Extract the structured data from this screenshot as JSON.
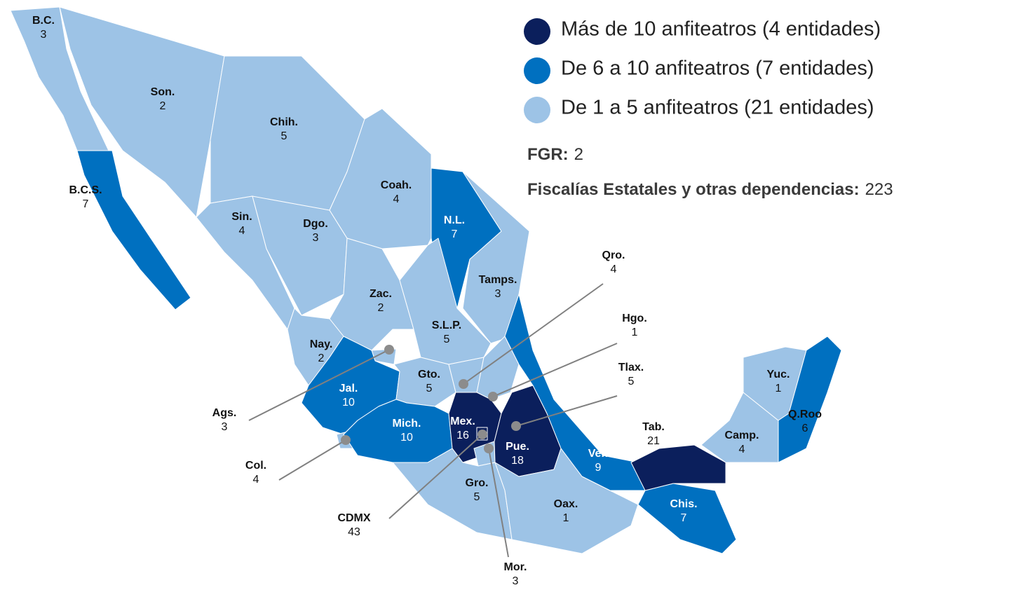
{
  "legend": [
    {
      "label": "Más de 10 anfiteatros (4 entidades)",
      "color": "#0b1f5c"
    },
    {
      "label": "De 6 a 10 anfiteatros (7 entidades)",
      "color": "#0070c0"
    },
    {
      "label": "De 1 a 5 anfiteatros (21 entidades)",
      "color": "#9dc3e6"
    }
  ],
  "summary": [
    {
      "label": "FGR:",
      "value": 2
    },
    {
      "label": "Fiscalías Estatales y otras dependencias:",
      "value": 223
    }
  ],
  "states": [
    {
      "name": "B.C.",
      "value": 3,
      "color": "#9dc3e6"
    },
    {
      "name": "B.C.S.",
      "value": 7,
      "color": "#0070c0"
    },
    {
      "name": "Son.",
      "value": 2,
      "color": "#9dc3e6"
    },
    {
      "name": "Chih.",
      "value": 5,
      "color": "#9dc3e6"
    },
    {
      "name": "Sin.",
      "value": 4,
      "color": "#9dc3e6"
    },
    {
      "name": "Dgo.",
      "value": 3,
      "color": "#9dc3e6"
    },
    {
      "name": "Coah.",
      "value": 4,
      "color": "#9dc3e6"
    },
    {
      "name": "N.L.",
      "value": 7,
      "color": "#0070c0"
    },
    {
      "name": "Tamps.",
      "value": 3,
      "color": "#9dc3e6"
    },
    {
      "name": "Zac.",
      "value": 2,
      "color": "#9dc3e6"
    },
    {
      "name": "S.L.P.",
      "value": 5,
      "color": "#9dc3e6"
    },
    {
      "name": "Nay.",
      "value": 2,
      "color": "#9dc3e6"
    },
    {
      "name": "Ags.",
      "value": 3,
      "color": "#9dc3e6"
    },
    {
      "name": "Jal.",
      "value": 10,
      "color": "#0070c0"
    },
    {
      "name": "Col.",
      "value": 4,
      "color": "#9dc3e6"
    },
    {
      "name": "Gto.",
      "value": 5,
      "color": "#9dc3e6"
    },
    {
      "name": "Qro.",
      "value": 4,
      "color": "#9dc3e6"
    },
    {
      "name": "Hgo.",
      "value": 1,
      "color": "#9dc3e6"
    },
    {
      "name": "Mich.",
      "value": 10,
      "color": "#0070c0"
    },
    {
      "name": "Mex.",
      "value": 16,
      "color": "#0b1f5c"
    },
    {
      "name": "CDMX",
      "value": 43,
      "color": "#0b1f5c"
    },
    {
      "name": "Mor.",
      "value": 3,
      "color": "#9dc3e6"
    },
    {
      "name": "Tlax.",
      "value": 5,
      "color": "#9dc3e6"
    },
    {
      "name": "Pue.",
      "value": 18,
      "color": "#0b1f5c"
    },
    {
      "name": "Ver.",
      "value": 9,
      "color": "#0070c0"
    },
    {
      "name": "Gro.",
      "value": 5,
      "color": "#9dc3e6"
    },
    {
      "name": "Oax.",
      "value": 1,
      "color": "#9dc3e6"
    },
    {
      "name": "Chis.",
      "value": 7,
      "color": "#0070c0"
    },
    {
      "name": "Tab.",
      "value": 21,
      "color": "#0b1f5c"
    },
    {
      "name": "Camp.",
      "value": 4,
      "color": "#9dc3e6"
    },
    {
      "name": "Yuc.",
      "value": 1,
      "color": "#9dc3e6"
    },
    {
      "name": "Q.Roo",
      "value": 6,
      "color": "#0070c0"
    }
  ]
}
